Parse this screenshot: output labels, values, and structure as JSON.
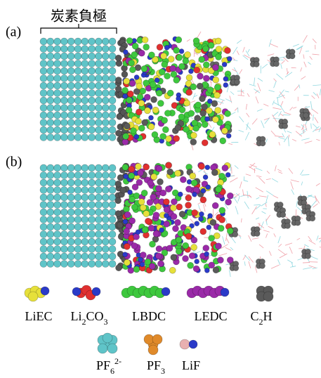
{
  "panel_labels": [
    "(a)",
    "(b)"
  ],
  "anode_label": "炭素負極",
  "legend": [
    {
      "label": [
        {
          "t": "LiEC"
        }
      ]
    },
    {
      "label": [
        {
          "t": "Li"
        },
        {
          "sub": "2"
        },
        {
          "t": "CO"
        },
        {
          "sub": "3"
        }
      ]
    },
    {
      "label": [
        {
          "t": "LBDC"
        }
      ]
    },
    {
      "label": [
        {
          "t": "LEDC"
        }
      ]
    },
    {
      "label": [
        {
          "t": "C"
        },
        {
          "sub": "2"
        },
        {
          "t": "H"
        }
      ]
    },
    {
      "label": [
        {
          "t": "PF"
        },
        {
          "sub": "6"
        },
        {
          "sup": "2-"
        }
      ]
    },
    {
      "label": [
        {
          "t": "PF"
        },
        {
          "sub": "3"
        }
      ]
    },
    {
      "label": [
        {
          "t": "LiF"
        }
      ]
    }
  ]
}
